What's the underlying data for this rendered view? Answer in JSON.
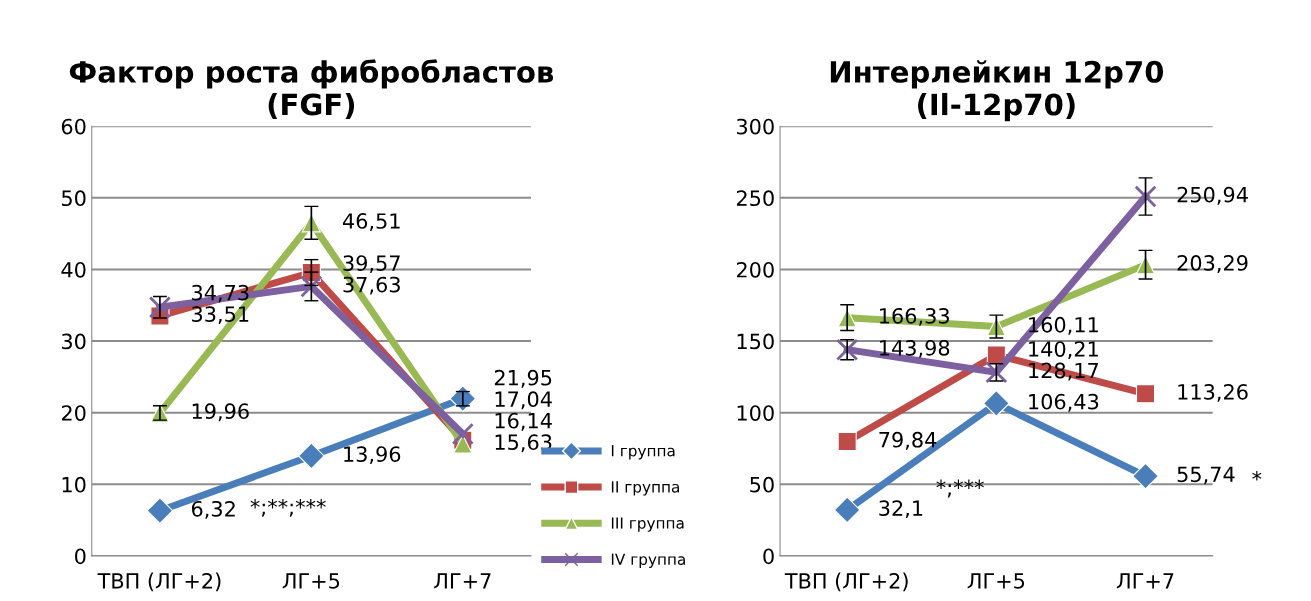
{
  "chart_data": [
    {
      "type": "line",
      "title": "Фактор роста фибробластов\n(FGF)",
      "categories": [
        "ТВП (ЛГ+2)",
        "ЛГ+5",
        "ЛГ+7"
      ],
      "ylim": [
        0,
        60
      ],
      "yticks": [
        0,
        10,
        20,
        30,
        40,
        50,
        60
      ],
      "grid": "y",
      "legend": "bottom right",
      "line_style": "solid",
      "series": [
        {
          "name": "I группа",
          "color": "#4a7ebb",
          "marker": "diamond",
          "values": [
            6.32,
            13.96,
            21.95
          ],
          "value_labels": [
            "6,32",
            "13,96",
            "21,95"
          ],
          "errors": [
            null,
            null,
            1
          ]
        },
        {
          "name": "II группа",
          "color": "#be4b48",
          "marker": "square",
          "values": [
            33.51,
            39.57,
            16.14
          ],
          "value_labels": [
            "33,51",
            "39,57",
            "16,14"
          ],
          "errors": [
            null,
            1.8,
            null
          ]
        },
        {
          "name": "III группа",
          "color": "#98b954",
          "marker": "triangle",
          "values": [
            19.96,
            46.51,
            15.63
          ],
          "value_labels": [
            "19,96",
            "46,51",
            "15,63"
          ],
          "errors": [
            1,
            2.3,
            null
          ]
        },
        {
          "name": "IV группа",
          "color": "#7d60a0",
          "marker": "cross",
          "values": [
            34.73,
            37.63,
            17.04
          ],
          "value_labels": [
            "34,73",
            "37,63",
            "17,04"
          ],
          "errors": [
            1.5,
            2,
            null
          ]
        }
      ],
      "annotations": [
        "*;**;***"
      ]
    },
    {
      "type": "line",
      "title": "Интерлейкин 12р70\n(Il-12p70)",
      "categories": [
        "ТВП (ЛГ+2)",
        "ЛГ+5",
        "ЛГ+7"
      ],
      "ylim": [
        0,
        300
      ],
      "yticks": [
        0,
        50,
        100,
        150,
        200,
        250,
        300
      ],
      "grid": "y",
      "line_style": "solid",
      "series": [
        {
          "color": "#4a7ebb",
          "marker": "diamond",
          "values": [
            32.1,
            106.43,
            55.74
          ],
          "value_labels": [
            "32,1",
            "106,43",
            "55,74"
          ]
        },
        {
          "color": "#be4b48",
          "marker": "square",
          "values": [
            79.84,
            140.21,
            113.26
          ],
          "value_labels": [
            "79,84",
            "140,21",
            "113,26"
          ]
        },
        {
          "color": "#98b954",
          "marker": "triangle",
          "values": [
            166.33,
            160.11,
            203.29
          ],
          "value_labels": [
            "166,33",
            "160,11",
            "203,29"
          ],
          "errors": [
            9,
            8,
            10
          ]
        },
        {
          "color": "#7d60a0",
          "marker": "cross",
          "values": [
            143.98,
            128.17,
            250.94
          ],
          "value_labels": [
            "143,98",
            "128,17",
            "250,94"
          ],
          "errors": [
            7,
            6,
            13
          ]
        }
      ],
      "annotations": [
        "*;***",
        "*"
      ]
    }
  ]
}
